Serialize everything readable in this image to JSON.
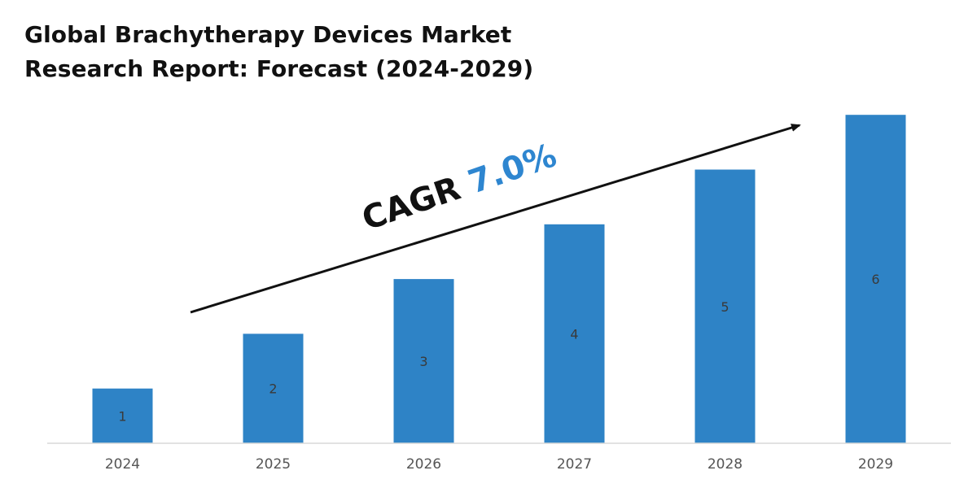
{
  "title_lines": [
    "Global Brachytherapy Devices Market",
    "Research Report: Forecast (2024-2029)"
  ],
  "cagr": {
    "label": "CAGR",
    "value": "7.0%",
    "value_color": "#2e86d0"
  },
  "chart_data": {
    "type": "bar",
    "title": "Global Brachytherapy Devices Market Research Report: Forecast (2024-2029)",
    "categories": [
      "2024",
      "2025",
      "2026",
      "2027",
      "2028",
      "2029"
    ],
    "values": [
      1,
      2,
      3,
      4,
      5,
      6
    ],
    "data_labels": [
      "1",
      "2",
      "3",
      "4",
      "5",
      "6"
    ],
    "bar_color": "#2e83c6",
    "ylim": [
      0,
      6
    ],
    "grid": false,
    "legend": "none",
    "xlabel": "",
    "ylabel": ""
  }
}
